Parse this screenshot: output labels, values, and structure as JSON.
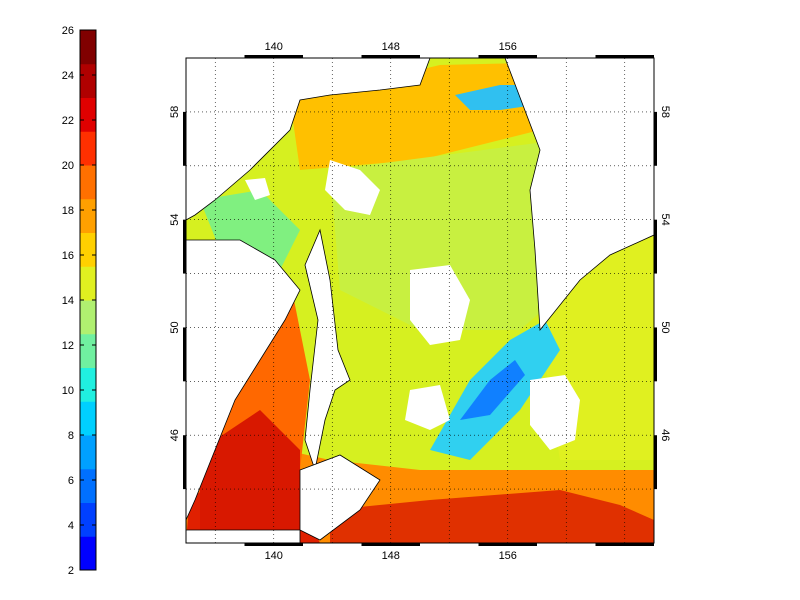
{
  "colorbar": {
    "min": 2,
    "max": 26,
    "step": 2,
    "tick_labels": [
      "2",
      "4",
      "6",
      "8",
      "10",
      "12",
      "14",
      "16",
      "18",
      "20",
      "22",
      "24",
      "26"
    ],
    "colors": [
      "#0000ff",
      "#0040ff",
      "#0070ff",
      "#00a0ff",
      "#00d0ff",
      "#20f0e0",
      "#70f0a0",
      "#b0f070",
      "#e0f020",
      "#ffd000",
      "#ffa000",
      "#ff7000",
      "#ff3000",
      "#e00000",
      "#b00000",
      "#800000"
    ]
  },
  "map": {
    "lon_range": [
      134,
      166
    ],
    "lat_range": [
      42,
      60
    ],
    "lon_ticks": [
      140,
      148,
      156
    ],
    "lon_labels": [
      "140",
      "148",
      "156"
    ],
    "lat_ticks": [
      46,
      50,
      54,
      58
    ],
    "lat_labels": [
      "46",
      "50",
      "54",
      "58"
    ],
    "grid": true
  }
}
